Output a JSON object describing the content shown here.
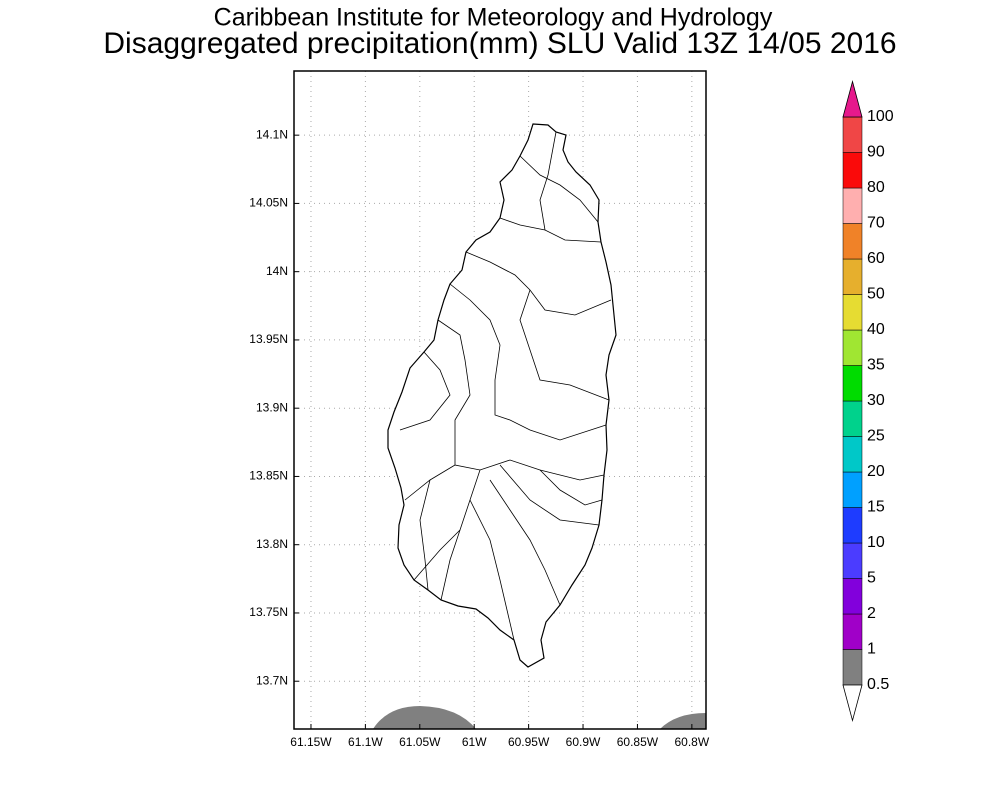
{
  "title": "Caribbean Institute for Meteorology and Hydrology",
  "subtitle": "Disaggregated precipitation(mm) SLU Valid 13Z 14/05 2016",
  "map": {
    "xlim": [
      -61.1656,
      -60.787
    ],
    "ylim": [
      13.665,
      14.147
    ],
    "xticks": [
      {
        "value": -61.15,
        "label": "61.15W"
      },
      {
        "value": -61.1,
        "label": "61.1W"
      },
      {
        "value": -61.05,
        "label": "61.05W"
      },
      {
        "value": -61,
        "label": "61W"
      },
      {
        "value": -60.95,
        "label": "60.95W"
      },
      {
        "value": -60.9,
        "label": "60.9W"
      },
      {
        "value": -60.85,
        "label": "60.85W"
      },
      {
        "value": -60.8,
        "label": "60.8W"
      }
    ],
    "yticks": [
      {
        "value": 14.1,
        "label": "14.1N"
      },
      {
        "value": 14.05,
        "label": "14.05N"
      },
      {
        "value": 14,
        "label": "14N"
      },
      {
        "value": 13.95,
        "label": "13.95N"
      },
      {
        "value": 13.9,
        "label": "13.9N"
      },
      {
        "value": 13.85,
        "label": "13.85N"
      },
      {
        "value": 13.8,
        "label": "13.8N"
      },
      {
        "value": 13.75,
        "label": "13.75N"
      },
      {
        "value": 13.7,
        "label": "13.7N"
      }
    ],
    "grid": true
  },
  "colorbar": {
    "levels": [
      0.5,
      1,
      2,
      5,
      10,
      15,
      20,
      25,
      30,
      35,
      40,
      50,
      60,
      70,
      80,
      90,
      100
    ],
    "colors": [
      "#808080",
      "#a000c8",
      "#8200dc",
      "#4b3cff",
      "#1e3cff",
      "#00a0ff",
      "#00c8c8",
      "#00d28c",
      "#00dc00",
      "#a0e632",
      "#e6dc32",
      "#e6af2d",
      "#f08228",
      "#ffafaf",
      "#fa0a0a",
      "#f04646"
    ],
    "under_color": "#ffffff",
    "over_color": "#e6198c"
  }
}
